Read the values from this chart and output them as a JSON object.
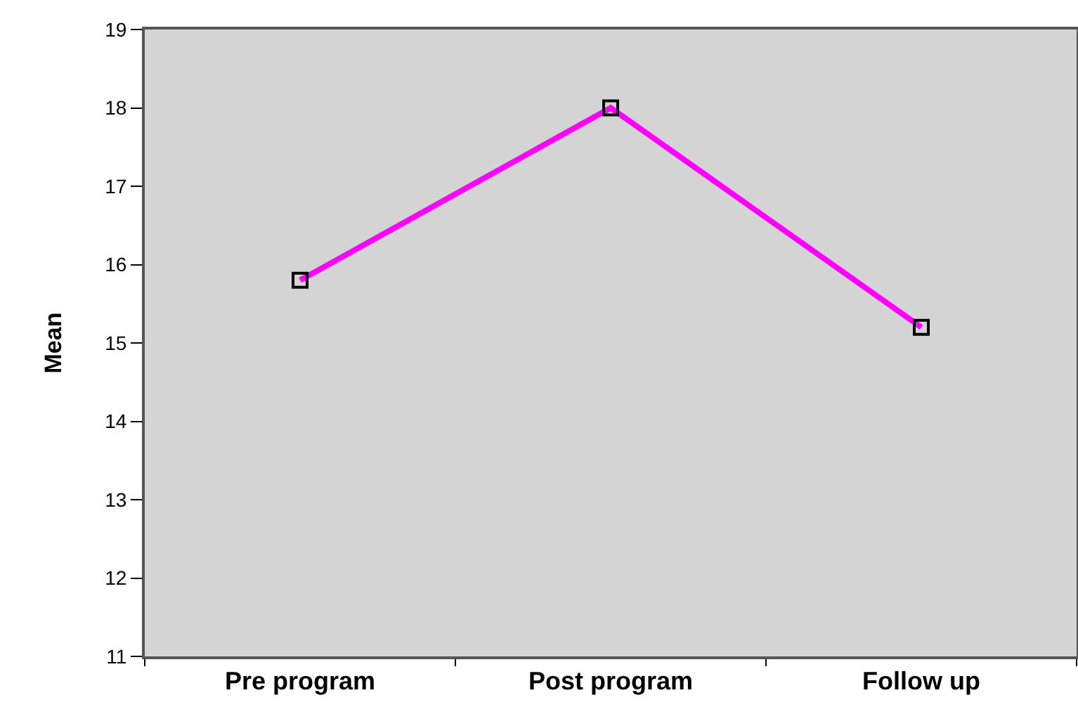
{
  "chart_data": {
    "type": "line",
    "ylabel": "Mean",
    "categories": [
      "Pre program",
      "Post program",
      "Follow up"
    ],
    "series": [
      {
        "color": "#ff00ff",
        "values": [
          15.8,
          18.0,
          15.2
        ]
      }
    ],
    "ylim": [
      11,
      19
    ],
    "yticks": [
      11,
      12,
      13,
      14,
      15,
      16,
      17,
      18,
      19
    ],
    "marker": "square",
    "line_style": "solid",
    "grid": false,
    "legend": false
  }
}
